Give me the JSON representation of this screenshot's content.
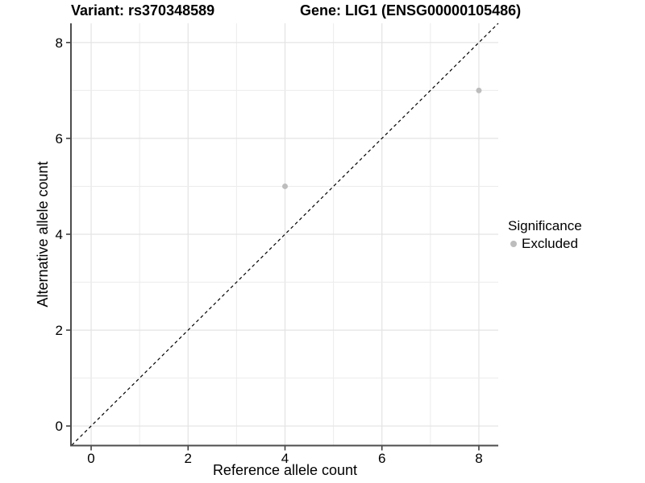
{
  "header": {
    "variant_title": "Variant: rs370348589",
    "gene_title": "Gene: LIG1 (ENSG00000105486)"
  },
  "chart_data": {
    "type": "scatter",
    "title": "Variant: rs370348589   Gene: LIG1 (ENSG00000105486)",
    "xlabel": "Reference allele count",
    "ylabel": "Alternative allele count",
    "xlim": [
      -0.4,
      8.4
    ],
    "ylim": [
      -0.4,
      8.4
    ],
    "x_ticks": [
      0,
      2,
      4,
      6,
      8
    ],
    "y_ticks": [
      0,
      2,
      4,
      6,
      8
    ],
    "grid": "on",
    "grid_line_interval": 1,
    "legend_position": "right",
    "series": [
      {
        "name": "Excluded",
        "marker": "circle",
        "color": "#bdbdbd",
        "points": [
          {
            "x": 4,
            "y": 5
          },
          {
            "x": 8,
            "y": 7
          }
        ]
      }
    ],
    "reference_line": {
      "kind": "identity",
      "style": "dashed",
      "color": "#000000",
      "from": [
        -0.4,
        -0.4
      ],
      "to": [
        8.4,
        8.4
      ]
    },
    "legend": {
      "title": "Significance",
      "entries": [
        {
          "label": "Excluded",
          "color": "#bdbdbd"
        }
      ]
    }
  },
  "colors": {
    "background": "#ffffff",
    "grid_major": "#e3e3e3",
    "grid_minor": "#ececec",
    "axis_line": "#4d4d4d",
    "tick": "#333333",
    "text": "#000000",
    "point": "#bdbdbd"
  }
}
